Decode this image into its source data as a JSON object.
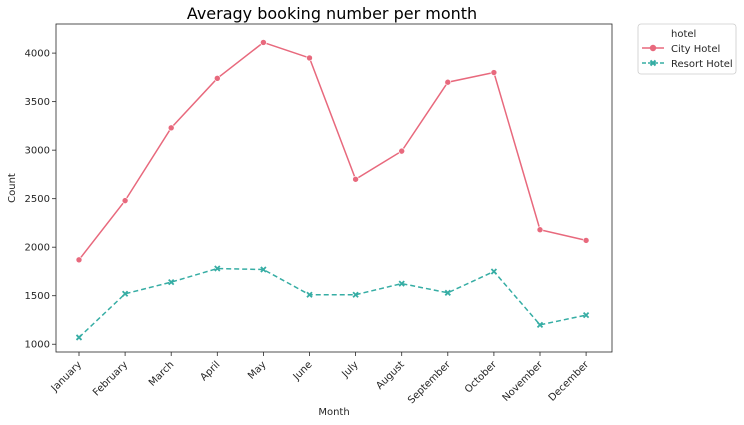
{
  "chart_data": {
    "type": "line",
    "title": "Averagy booking number per month",
    "xlabel": "Month",
    "ylabel": "Count",
    "categories": [
      "January",
      "February",
      "March",
      "April",
      "May",
      "June",
      "July",
      "August",
      "September",
      "October",
      "November",
      "December"
    ],
    "ylim": [
      920,
      4300
    ],
    "yticks": [
      1000,
      1500,
      2000,
      2500,
      3000,
      3500,
      4000
    ],
    "grid": false,
    "legend": {
      "title": "hotel",
      "placement": "outside-top-right"
    },
    "series": [
      {
        "name": "City Hotel",
        "color": "#e8697d",
        "marker": "circle",
        "linestyle": "solid",
        "values": [
          1870,
          2480,
          3230,
          3740,
          4110,
          3950,
          2700,
          2990,
          3700,
          3800,
          2180,
          2070
        ]
      },
      {
        "name": "Resort Hotel",
        "color": "#36ada4",
        "marker": "x",
        "linestyle": "dashed",
        "values": [
          1070,
          1520,
          1640,
          1780,
          1770,
          1510,
          1510,
          1625,
          1530,
          1750,
          1200,
          1300
        ]
      }
    ]
  }
}
